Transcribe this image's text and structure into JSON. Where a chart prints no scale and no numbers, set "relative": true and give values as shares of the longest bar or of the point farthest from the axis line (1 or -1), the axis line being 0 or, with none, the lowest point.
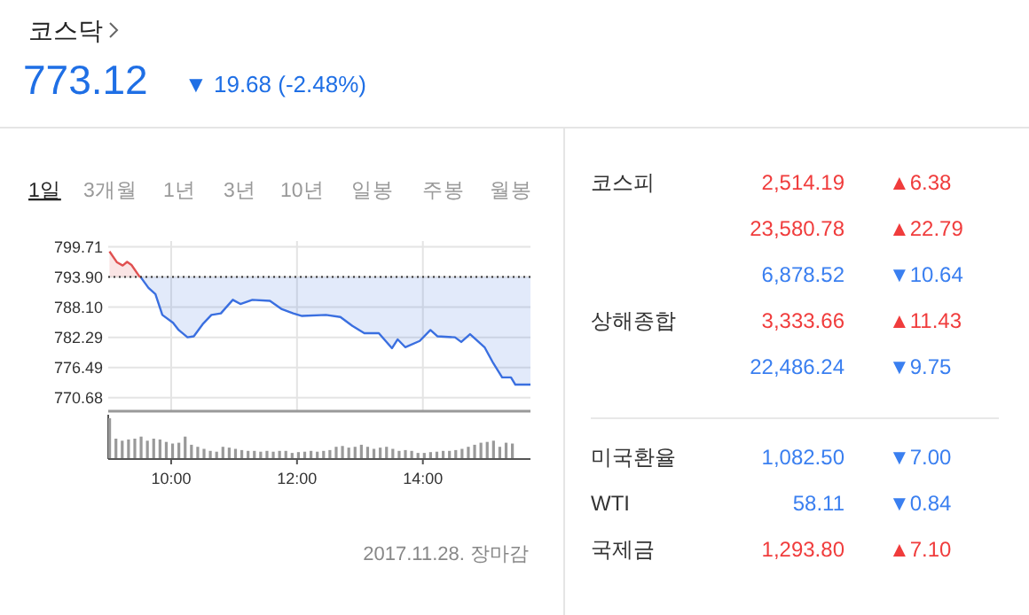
{
  "chart_data": [
    {
      "type": "other",
      "title": "코스닥",
      "subtitle": "773.12",
      "annotations": [
        "▼ 19.68 (-2.48%)",
        "1일",
        "3개월",
        "1년",
        "3년",
        "10년",
        "일봉",
        "주봉",
        "월봉"
      ],
      "colors": [
        "#1f6fe5"
      ]
    },
    {
      "type": "line",
      "xlim": [
        9,
        15.71
      ],
      "ylim": [
        768.1,
        800.8
      ],
      "xticks": [
        {
          "value": 10,
          "label": null
        },
        {
          "value": 12,
          "label": null
        },
        {
          "value": 14,
          "label": null
        }
      ],
      "yticks": [
        770.68,
        776.49,
        782.29,
        {
          "value": 788.1,
          "label": "788.10"
        },
        {
          "value": 793.9,
          "label": "793.90"
        },
        799.71
      ],
      "tick_labels": "y",
      "grid": true,
      "ref_lines": [
        {
          "axis": "y",
          "value": 793.9,
          "line_style": "dotted",
          "color": "#333333"
        }
      ],
      "series": [
        {
          "color": "#e05050",
          "x": [
            9.02,
            9.14,
            9.23,
            9.3,
            9.37,
            9.49,
            9.52
          ],
          "values": [
            798.8,
            796.7,
            796.1,
            796.8,
            796.2,
            794.1,
            793.8
          ]
        },
        {
          "color": "#3a6fe0",
          "x": [
            9.52,
            9.64,
            9.75,
            9.86,
            10.03,
            10.12,
            10.26,
            10.36,
            10.5,
            10.64,
            10.79,
            10.98,
            11.1,
            11.29,
            11.57,
            11.76,
            11.94,
            12.08,
            12.46,
            12.69,
            12.88,
            13.07,
            13.3,
            13.51,
            13.6,
            13.72,
            13.95,
            14.12,
            14.23,
            14.51,
            14.61,
            14.75,
            14.98,
            15.12,
            15.26,
            15.4,
            15.47,
            15.71
          ],
          "values": [
            793.8,
            791.8,
            790.6,
            786.6,
            785.1,
            783.7,
            782.3,
            782.5,
            784.8,
            786.6,
            786.9,
            789.5,
            788.7,
            789.5,
            789.3,
            787.7,
            786.9,
            786.4,
            786.6,
            786.2,
            784.5,
            783.1,
            783.1,
            780.2,
            781.9,
            780.4,
            781.6,
            783.7,
            782.5,
            782.3,
            781.4,
            782.9,
            780.4,
            777.3,
            774.6,
            774.6,
            773.2,
            773.2
          ]
        }
      ]
    },
    {
      "type": "bar",
      "relative": true,
      "color": "#999999",
      "xlim": [
        9,
        15.71
      ],
      "xticks": [
        {
          "value": 10,
          "label": "10:00"
        },
        {
          "value": 12,
          "label": "12:00"
        },
        {
          "value": 14,
          "label": "14:00"
        }
      ],
      "x": [
        9.0,
        9.1,
        9.2,
        9.3,
        9.4,
        9.5,
        9.6,
        9.7,
        9.8,
        9.9,
        10.0,
        10.1,
        10.2,
        10.3,
        10.4,
        10.5,
        10.6,
        10.7,
        10.8,
        10.9,
        11.0,
        11.1,
        11.2,
        11.3,
        11.4,
        11.5,
        11.6,
        11.7,
        11.8,
        11.9,
        12.0,
        12.1,
        12.2,
        12.3,
        12.4,
        12.5,
        12.6,
        12.7,
        12.8,
        12.9,
        13.0,
        13.1,
        13.2,
        13.3,
        13.4,
        13.5,
        13.6,
        13.7,
        13.8,
        13.9,
        14.0,
        14.1,
        14.2,
        14.3,
        14.4,
        14.5,
        14.6,
        14.7,
        14.8,
        14.9,
        15.0,
        15.1,
        15.2,
        15.3,
        15.4
      ],
      "values": [
        1.0,
        0.5,
        0.45,
        0.48,
        0.5,
        0.55,
        0.45,
        0.5,
        0.48,
        0.42,
        0.38,
        0.4,
        0.55,
        0.35,
        0.3,
        0.25,
        0.2,
        0.18,
        0.3,
        0.28,
        0.25,
        0.22,
        0.2,
        0.2,
        0.18,
        0.2,
        0.18,
        0.2,
        0.2,
        0.15,
        0.17,
        0.18,
        0.2,
        0.18,
        0.2,
        0.22,
        0.3,
        0.32,
        0.28,
        0.3,
        0.35,
        0.3,
        0.25,
        0.28,
        0.3,
        0.25,
        0.2,
        0.22,
        0.2,
        0.15,
        0.15,
        0.17,
        0.18,
        0.2,
        0.2,
        0.22,
        0.25,
        0.3,
        0.35,
        0.4,
        0.42,
        0.45,
        0.3,
        0.4,
        0.38
      ],
      "annotations": [
        "2017.11.28. 장마감"
      ]
    },
    {
      "type": "other",
      "categories": [
        "코스피",
        null,
        null,
        "상해종합",
        null,
        "미국환율",
        "WTI",
        "국제금"
      ],
      "value_labels": [
        "2,514.19",
        "23,580.78",
        "6,878.52",
        "3,333.66",
        "22,486.24",
        "1,082.50",
        "58.11",
        "1,293.80"
      ],
      "annotations": [
        "▲6.38",
        "▲22.79",
        "▼10.64",
        "▲11.43",
        "▼9.75",
        "▼7.00",
        "▼0.84",
        "▲7.10"
      ],
      "colors": [
        "#f03c3c",
        "#f03c3c",
        "#3a7ff0",
        "#f03c3c",
        "#3a7ff0",
        "#3a7ff0",
        "#3a7ff0",
        "#f03c3c"
      ]
    }
  ]
}
